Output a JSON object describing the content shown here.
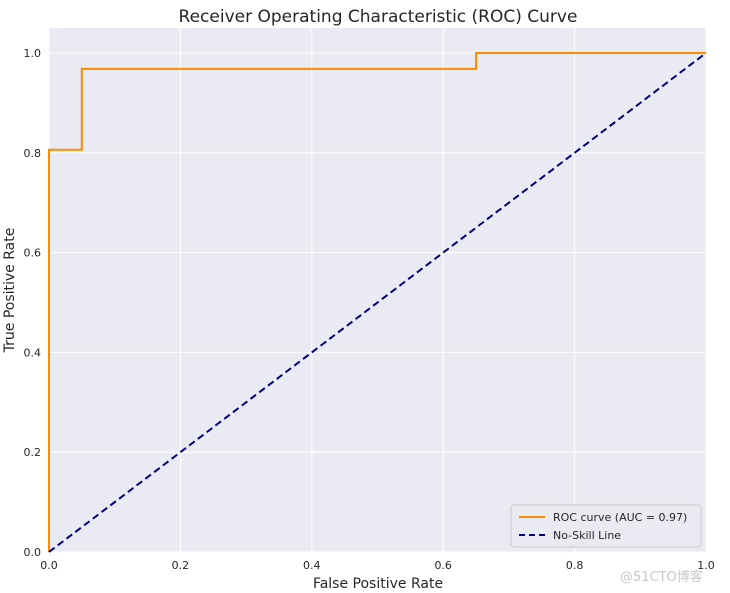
{
  "chart_data": {
    "type": "line",
    "title": "Receiver Operating Characteristic (ROC) Curve",
    "xlabel": "False Positive Rate",
    "ylabel": "True Positive Rate",
    "xlim": [
      0.0,
      1.0
    ],
    "ylim": [
      0.0,
      1.05
    ],
    "xticks": [
      0.0,
      0.2,
      0.4,
      0.6,
      0.8,
      1.0
    ],
    "yticks": [
      0.0,
      0.2,
      0.4,
      0.6,
      0.8,
      1.0
    ],
    "xtick_labels": [
      "0.0",
      "0.2",
      "0.4",
      "0.6",
      "0.8",
      "1.0"
    ],
    "ytick_labels": [
      "0.0",
      "0.2",
      "0.4",
      "0.6",
      "0.8",
      "1.0"
    ],
    "grid": true,
    "background": "#eaeaf2",
    "legend_position": "bottom-right",
    "series": [
      {
        "name": "ROC curve (AUC = 0.97)",
        "color": "#ff8c00",
        "style": "solid",
        "x": [
          0.0,
          0.0,
          0.05,
          0.05,
          0.65,
          0.65,
          1.0
        ],
        "y": [
          0.0,
          0.806,
          0.806,
          0.968,
          0.968,
          1.0,
          1.0
        ]
      },
      {
        "name": "No-Skill Line",
        "color": "#000080",
        "style": "dashed",
        "x": [
          0.0,
          1.0
        ],
        "y": [
          0.0,
          1.0
        ]
      }
    ]
  },
  "watermark": "@51CTO博客"
}
